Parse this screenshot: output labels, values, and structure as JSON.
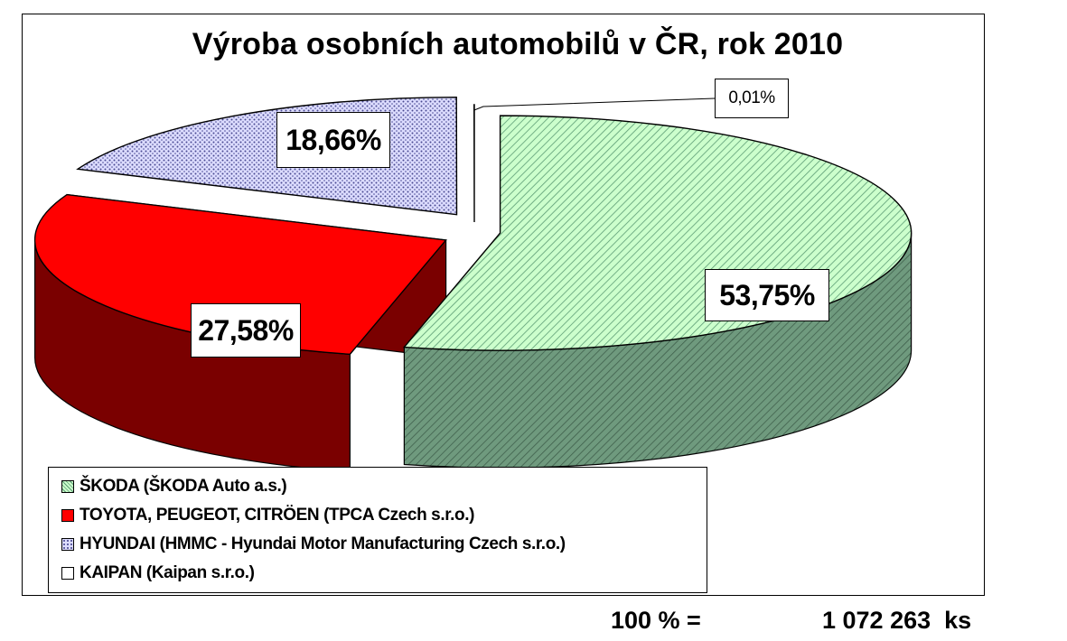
{
  "chart_data": {
    "type": "pie",
    "title": "Výroba osobních automobilů v ČR, rok 2010",
    "slices": [
      {
        "label": "ŠKODA (ŠKODA Auto a.s.)",
        "value": 53.75,
        "value_label": "53,75%",
        "color": "#ccffcc",
        "side_color": "#4f7a60",
        "pattern": "diagonal-hatch"
      },
      {
        "label": "TOYOTA, PEUGEOT, CITRÖEN (TPCA Czech s.r.o.)",
        "value": 27.58,
        "value_label": "27,58%",
        "color": "#ff0000",
        "side_color": "#7a0000",
        "pattern": "solid"
      },
      {
        "label": "HYUNDAI (HMMC - Hyundai Motor Manufacturing Czech s.r.o.)",
        "value": 18.66,
        "value_label": "18,66%",
        "color": "#ccccff",
        "side_color": "#5a5a8a",
        "pattern": "dots"
      },
      {
        "label": "KAIPAN (Kaipan s.r.o.)",
        "value": 0.01,
        "value_label": "0,01%",
        "color": "#ffffff",
        "side_color": "#cccccc",
        "pattern": "solid"
      }
    ],
    "legend_position": "bottom-left",
    "style": "3d-exploded"
  },
  "footer": {
    "total_label": "100 % =",
    "total_value": "1 072 263  ks"
  }
}
